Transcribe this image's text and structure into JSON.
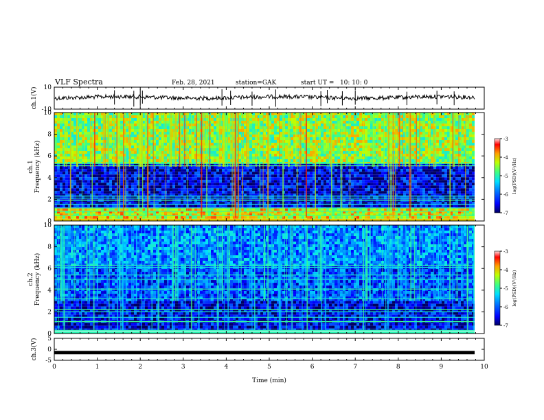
{
  "header": {
    "title": "VLF Spectra",
    "date": "Feb. 28, 2021",
    "station": "station=GAK",
    "start_ut": "start UT =   10: 10: 0"
  },
  "colors": {
    "background": "#ffffff",
    "axes": "#000000",
    "trace": "#000000",
    "colormap": [
      "#00007f",
      "#0000ff",
      "#0060ff",
      "#00c8ff",
      "#40ffc0",
      "#a0ff60",
      "#ffff00",
      "#ff8000",
      "#ff0000",
      "#800000"
    ]
  },
  "chart_data": [
    {
      "type": "line",
      "ylabel": "ch.1(V)",
      "ylim": [
        -10,
        10
      ],
      "yticks": [
        "10",
        "-10"
      ],
      "xlim": [
        0,
        10
      ],
      "baseline_value": 0,
      "spikes_min": [
        1.4,
        1.85,
        2.0,
        2.05,
        3.9,
        4.1,
        4.6,
        5.15,
        6.2,
        6.35,
        6.7,
        7.0,
        8.2,
        8.9,
        9.3
      ]
    },
    {
      "type": "heatmap",
      "ylabel": "ch.1\nFrequency (kHz)",
      "ylim": [
        0,
        10
      ],
      "yticks": [
        "0",
        "2",
        "4",
        "6",
        "8",
        "10"
      ],
      "xlim": [
        0,
        10
      ],
      "colorbar": {
        "label": "log(PSD)(V²/Hz)",
        "range": [
          -7,
          -3
        ],
        "ticks": [
          "-3",
          "-4",
          "-5",
          "-6",
          "-7"
        ]
      },
      "bands_khz": [
        {
          "from": 5.3,
          "to": 10,
          "level": 0.62
        },
        {
          "from": 1.2,
          "to": 5.3,
          "level": 0.12
        },
        {
          "from": 0.2,
          "to": 1.2,
          "level": 0.7
        }
      ],
      "lines_khz": [
        5.3,
        5.1,
        2.3,
        2.1,
        1.9,
        1.55,
        1.2,
        0.9,
        0.5
      ]
    },
    {
      "type": "heatmap",
      "ylabel": "ch.2\nFrequency (kHz)",
      "ylim": [
        0,
        10
      ],
      "yticks": [
        "0",
        "2",
        "4",
        "6",
        "8",
        "10"
      ],
      "xlim": [
        0,
        10
      ],
      "colorbar": {
        "label": "log(PSD)(V²/Hz)",
        "range": [
          -7,
          -3
        ],
        "ticks": [
          "-3",
          "-4",
          "-5",
          "-6",
          "-7"
        ]
      },
      "bands_khz": [
        {
          "from": 6.2,
          "to": 10,
          "level": 0.3
        },
        {
          "from": 3.0,
          "to": 6.2,
          "level": 0.22
        },
        {
          "from": 0.3,
          "to": 3.0,
          "level": 0.12
        }
      ],
      "lines_khz": [
        6.3,
        6.1,
        5.4,
        5.0,
        4.1,
        3.2,
        2.2,
        2.0,
        1.5,
        1.1,
        0.3
      ]
    },
    {
      "type": "line",
      "ylabel": "ch.3(V)",
      "ylim": [
        -5,
        5
      ],
      "yticks": [
        "5",
        "0",
        "-5"
      ],
      "xlim": [
        0,
        10
      ],
      "constant_value": -1.5,
      "xlabel": "Time (min)",
      "xticks": [
        "0",
        "1",
        "2",
        "3",
        "4",
        "5",
        "6",
        "7",
        "8",
        "9",
        "10"
      ]
    }
  ]
}
